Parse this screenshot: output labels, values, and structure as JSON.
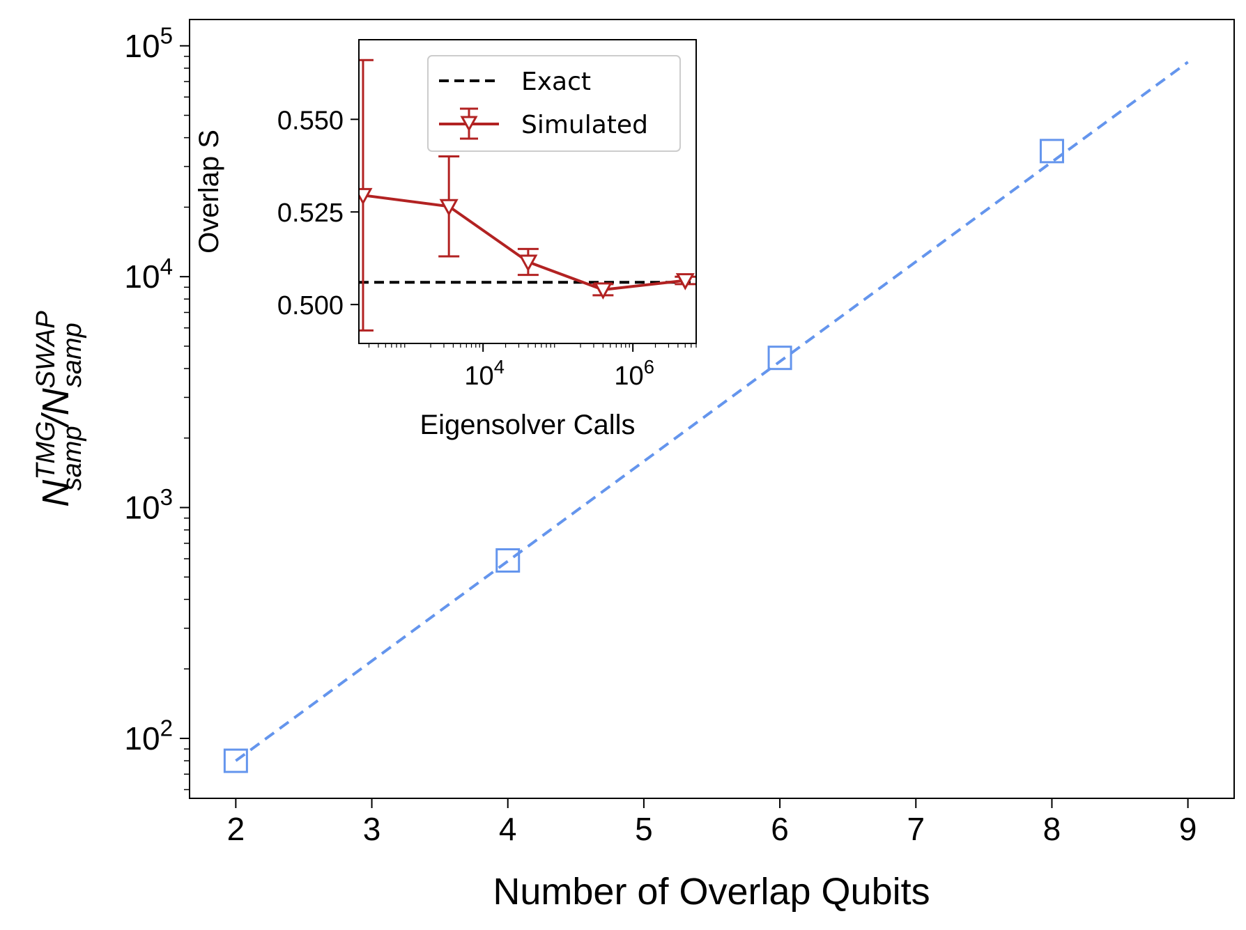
{
  "chart_data": [
    {
      "type": "scatter",
      "xlabel": "Number of Overlap Qubits",
      "ylabel_main": "N",
      "ylabel_sup1": "TMG",
      "ylabel_sub1": "samp",
      "ylabel_slash": "/N",
      "ylabel_sup2": "SWAP",
      "ylabel_sub2": "samp",
      "xlim": [
        1.66,
        9.34
      ],
      "ylim": [
        55,
        130000
      ],
      "yscale": "log",
      "xticks": [
        "2",
        "3",
        "4",
        "5",
        "6",
        "7",
        "8",
        "9"
      ],
      "yticks": [
        {
          "value": 100,
          "base": "10",
          "exp": "2"
        },
        {
          "value": 1000,
          "base": "10",
          "exp": "3"
        },
        {
          "value": 10000,
          "base": "10",
          "exp": "4"
        },
        {
          "value": 100000,
          "base": "10",
          "exp": "5"
        }
      ],
      "series": [
        {
          "kind": "markers",
          "marker": "open-square",
          "color": "#6495ed",
          "x": [
            2,
            4,
            6,
            8
          ],
          "y": [
            80,
            590,
            4450,
            35000
          ]
        },
        {
          "kind": "dashed-line",
          "color": "#6495ed",
          "x": [
            2,
            9
          ],
          "y": [
            80,
            85000
          ]
        }
      ],
      "grid": false
    },
    {
      "type": "line",
      "inset": true,
      "xlabel": "Eigensolver Calls",
      "ylabel": "Overlap S",
      "xscale": "log",
      "xlim": [
        220,
        7000000
      ],
      "ylim": [
        0.4895,
        0.5715
      ],
      "xticks": [
        {
          "value": 10000,
          "base": "10",
          "exp": "4"
        },
        {
          "value": 1000000,
          "base": "10",
          "exp": "6"
        }
      ],
      "yticks": [
        "0.500",
        "0.525",
        "0.550"
      ],
      "series": [
        {
          "name": "Exact",
          "kind": "dashed-line",
          "color": "#000000",
          "y": 0.506
        },
        {
          "name": "Simulated",
          "kind": "line-errorbar",
          "marker": "open-triangle-down",
          "color": "#b22222",
          "x": [
            250,
            3500,
            40000,
            400000,
            5000000
          ],
          "y": [
            0.5295,
            0.5265,
            0.5115,
            0.504,
            0.5065
          ],
          "yerr": [
            0.0365,
            0.0135,
            0.0035,
            0.0015,
            0.001
          ]
        }
      ],
      "legend": "upper-right",
      "grid": false
    }
  ]
}
